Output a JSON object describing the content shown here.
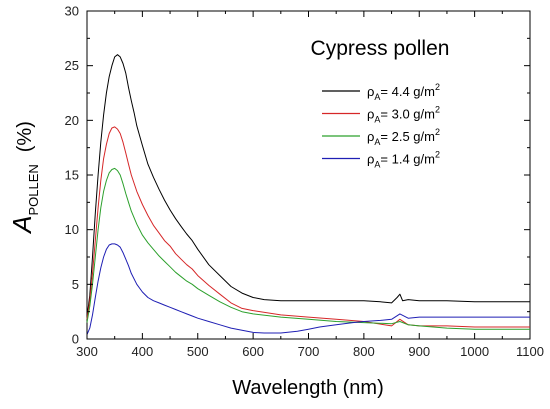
{
  "chart_data": {
    "type": "line",
    "title": "Cypress pollen",
    "xlabel": "Wavelength (nm)",
    "ylabel": {
      "main": "A",
      "subscript": "POLLEN",
      "unit": "(%)"
    },
    "xlim": [
      300,
      1100
    ],
    "ylim": [
      0,
      30
    ],
    "xticks": [
      300,
      400,
      500,
      600,
      700,
      800,
      900,
      1000,
      1100
    ],
    "yticks": [
      0,
      5,
      10,
      15,
      20,
      25,
      30
    ],
    "grid": false,
    "legend_position": "top-right",
    "series": [
      {
        "name": {
          "prefix": "ρ",
          "sub": "A",
          "text": "= 4.4 g/m",
          "sup": "2"
        },
        "color": "#000000",
        "x": [
          300,
          305,
          310,
          315,
          320,
          325,
          330,
          335,
          340,
          345,
          350,
          355,
          360,
          365,
          370,
          375,
          380,
          385,
          390,
          400,
          410,
          420,
          430,
          440,
          450,
          460,
          470,
          480,
          490,
          500,
          520,
          540,
          560,
          580,
          600,
          620,
          650,
          700,
          750,
          800,
          830,
          850,
          860,
          865,
          870,
          880,
          900,
          950,
          1000,
          1050,
          1100
        ],
        "y": [
          2.0,
          4.0,
          7.5,
          11.5,
          15.0,
          18.0,
          20.5,
          22.5,
          24.0,
          25.0,
          25.8,
          26.0,
          25.8,
          25.2,
          24.3,
          23.0,
          21.8,
          20.7,
          19.5,
          17.7,
          16.0,
          14.8,
          13.7,
          12.7,
          11.8,
          11.0,
          10.3,
          9.6,
          9.0,
          8.2,
          6.8,
          5.8,
          4.8,
          4.2,
          3.8,
          3.6,
          3.5,
          3.5,
          3.5,
          3.5,
          3.4,
          3.3,
          3.8,
          4.1,
          3.5,
          3.6,
          3.5,
          3.5,
          3.4,
          3.4,
          3.4
        ]
      },
      {
        "name": {
          "prefix": "ρ",
          "sub": "A",
          "text": "= 3.0 g/m",
          "sup": "2"
        },
        "color": "#d62728",
        "x": [
          300,
          305,
          310,
          315,
          320,
          325,
          330,
          335,
          340,
          345,
          350,
          355,
          360,
          365,
          370,
          375,
          380,
          390,
          400,
          410,
          420,
          430,
          440,
          450,
          460,
          470,
          480,
          490,
          500,
          520,
          540,
          560,
          580,
          600,
          650,
          700,
          750,
          800,
          850,
          865,
          880,
          900,
          950,
          1000,
          1050,
          1100
        ],
        "y": [
          1.8,
          3.5,
          6.0,
          9.0,
          12.0,
          14.5,
          16.5,
          17.8,
          18.8,
          19.3,
          19.4,
          19.2,
          18.8,
          18.0,
          17.0,
          16.0,
          15.0,
          13.5,
          12.3,
          11.3,
          10.4,
          9.7,
          9.0,
          8.5,
          7.8,
          7.3,
          6.8,
          6.4,
          5.8,
          4.9,
          4.1,
          3.3,
          2.8,
          2.6,
          2.2,
          2.0,
          1.8,
          1.6,
          1.2,
          1.8,
          1.3,
          1.2,
          1.2,
          1.1,
          1.1,
          1.1
        ]
      },
      {
        "name": {
          "prefix": "ρ",
          "sub": "A",
          "text": "= 2.5 g/m",
          "sup": "2"
        },
        "color": "#2ca02c",
        "x": [
          300,
          305,
          310,
          315,
          320,
          325,
          330,
          335,
          340,
          345,
          350,
          355,
          360,
          365,
          370,
          375,
          380,
          390,
          400,
          410,
          420,
          430,
          440,
          450,
          460,
          470,
          480,
          490,
          500,
          520,
          540,
          560,
          580,
          600,
          650,
          700,
          750,
          800,
          850,
          865,
          880,
          900,
          950,
          1000,
          1050,
          1100
        ],
        "y": [
          1.5,
          3.0,
          5.0,
          7.5,
          10.0,
          12.0,
          13.5,
          14.5,
          15.2,
          15.5,
          15.6,
          15.4,
          15.0,
          14.2,
          13.3,
          12.5,
          11.7,
          10.5,
          9.5,
          8.8,
          8.2,
          7.6,
          7.1,
          6.6,
          6.1,
          5.7,
          5.3,
          5.0,
          4.6,
          4.0,
          3.4,
          2.9,
          2.5,
          2.3,
          2.0,
          1.8,
          1.6,
          1.5,
          1.4,
          1.6,
          1.3,
          1.2,
          1.0,
          0.9,
          0.9,
          0.9
        ]
      },
      {
        "name": {
          "prefix": "ρ",
          "sub": "A",
          "text": "= 1.4 g/m",
          "sup": "2"
        },
        "color": "#1f1fb4",
        "x": [
          300,
          305,
          310,
          315,
          320,
          325,
          330,
          335,
          340,
          345,
          350,
          355,
          360,
          365,
          370,
          375,
          380,
          390,
          400,
          410,
          420,
          430,
          440,
          450,
          460,
          470,
          480,
          490,
          500,
          520,
          540,
          560,
          580,
          600,
          620,
          650,
          680,
          700,
          720,
          750,
          780,
          800,
          830,
          850,
          865,
          880,
          900,
          950,
          1000,
          1050,
          1100
        ],
        "y": [
          0.4,
          1.0,
          2.2,
          3.8,
          5.3,
          6.5,
          7.5,
          8.2,
          8.6,
          8.7,
          8.7,
          8.6,
          8.4,
          7.9,
          7.3,
          6.7,
          6.0,
          5.0,
          4.3,
          3.8,
          3.5,
          3.3,
          3.1,
          2.9,
          2.7,
          2.5,
          2.3,
          2.1,
          1.9,
          1.6,
          1.3,
          1.0,
          0.8,
          0.6,
          0.55,
          0.55,
          0.7,
          0.9,
          1.1,
          1.3,
          1.5,
          1.6,
          1.7,
          1.8,
          2.3,
          1.9,
          2.0,
          2.0,
          2.0,
          2.0,
          2.0
        ]
      }
    ]
  }
}
